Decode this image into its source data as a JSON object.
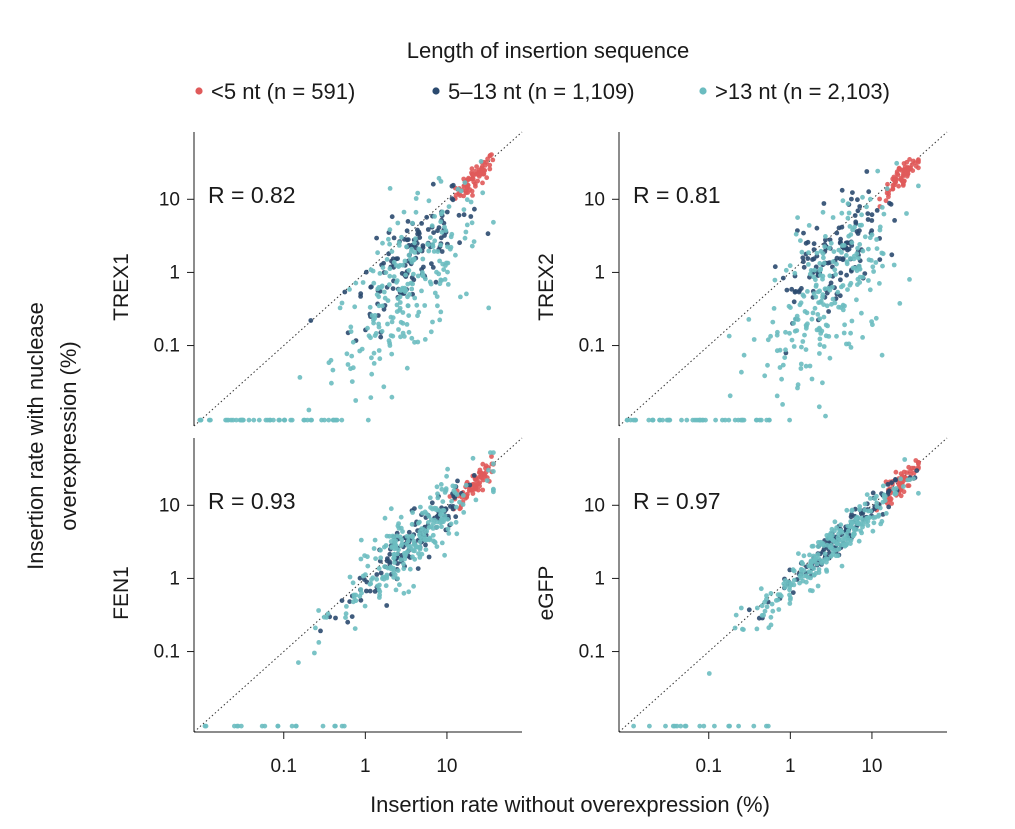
{
  "legend": {
    "title": "Length of insertion sequence",
    "groups": [
      {
        "label": "<5 nt",
        "n_text": "(n = 591)",
        "n": 591,
        "color": "#e05a5a"
      },
      {
        "label": "5–13 nt",
        "n_text": "(n = 1,109)",
        "n": 1109,
        "color": "#2b4a6f"
      },
      {
        "label": ">13 nt",
        "n_text": "(n = 2,103)",
        "n": 2103,
        "color": "#6bbcc0"
      }
    ]
  },
  "chart_data": {
    "type": "scatter",
    "xlabel": "Insertion rate without overexpression (%)",
    "ylabel": "Insertion rate with nuclease\noverexpression (%)",
    "ylabel_lines": [
      "Insertion rate with nuclease",
      "overexpression (%)"
    ],
    "x_scale": "log10",
    "y_scale": "log10",
    "tick_values": [
      0.1,
      1,
      10
    ],
    "tick_labels": [
      "0.1",
      "1",
      "10"
    ],
    "reference_line": "y = x (dotted)",
    "panels": [
      {
        "name": "TREX1",
        "r_label": "R = 0.82",
        "R": 0.82
      },
      {
        "name": "TREX2",
        "r_label": "R = 0.81",
        "R": 0.81
      },
      {
        "name": "FEN1",
        "r_label": "R = 0.93",
        "R": 0.93
      },
      {
        "name": "eGFP",
        "r_label": "R = 0.97",
        "R": 0.97
      }
    ]
  }
}
